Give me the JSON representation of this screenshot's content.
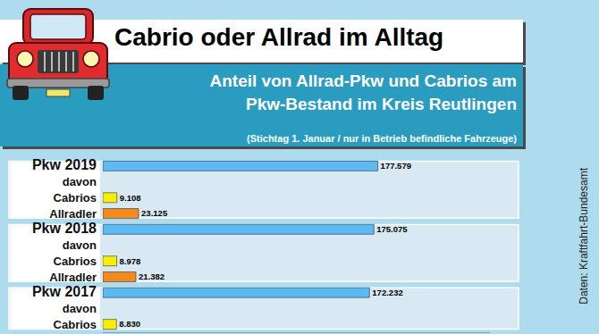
{
  "chart_data": {
    "type": "bar",
    "orientation": "horizontal",
    "title": "Cabrio oder Allrad im Alltag",
    "subtitle": [
      "Anteil von Allrad-Pkw und Cabrios am",
      "Pkw-Bestand im Kreis Reutlingen"
    ],
    "note": "(Stichtag 1. Januar / nur in Betrieb befindliche Fahrzeuge)",
    "source": "Daten: Kraftfahrt-Bundesamt",
    "categories": [
      "Pkw 2019",
      "davon",
      "Cabrios",
      "Allradler",
      "Pkw 2018",
      "davon",
      "Cabrios",
      "Allradler",
      "Pkw 2017",
      "davon",
      "Cabrios"
    ],
    "values": [
      177579,
      null,
      9108,
      23125,
      175075,
      null,
      8978,
      21382,
      172232,
      null,
      8830
    ],
    "value_labels": [
      "177.579",
      null,
      "9.108",
      "23.125",
      "175.075",
      null,
      "8.978",
      "21.382",
      "172.232",
      null,
      "8.830"
    ],
    "colors": [
      "#5cb9f2",
      null,
      "#f7ee00",
      "#f28a1e",
      "#5cb9f2",
      null,
      "#f7ee00",
      "#f28a1e",
      "#5cb9f2",
      null,
      "#f7ee00"
    ],
    "xlim": [
      0,
      250000
    ],
    "data_labels": true,
    "tick_labels": "y",
    "grid": false
  }
}
